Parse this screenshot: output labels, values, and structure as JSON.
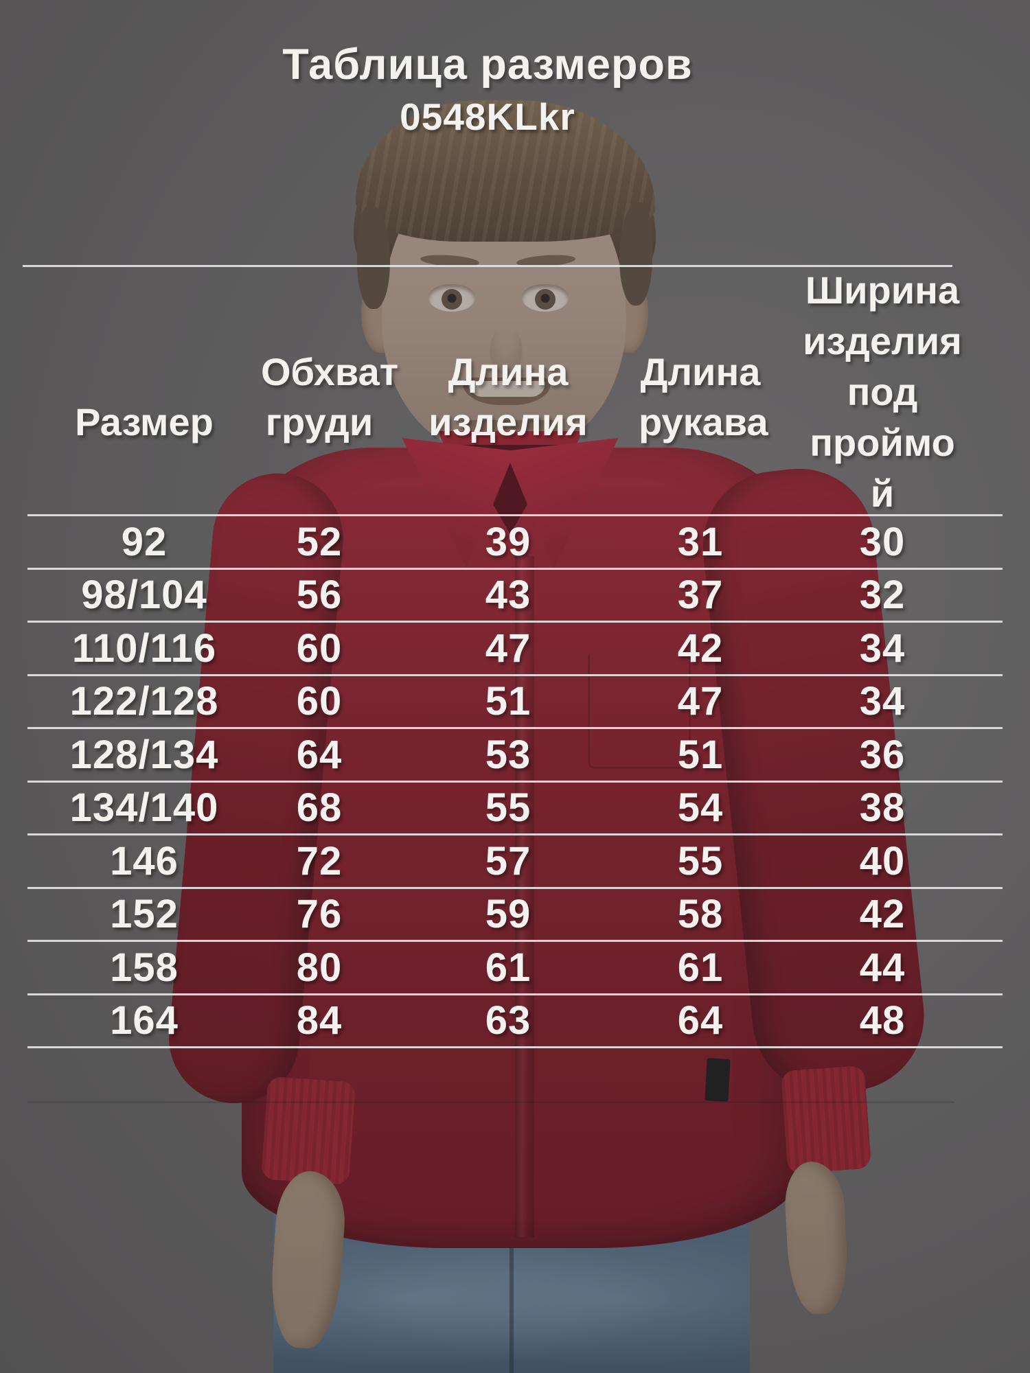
{
  "page": {
    "title": "Таблица размеров",
    "model_code": "0548KLkr"
  },
  "size_table": {
    "columns": [
      "Размер",
      "Обхват\nгруди",
      "Длина\nизделия",
      "Длина\nрукава",
      "Ширина\nизделия\nпод\nпроймо\nй"
    ],
    "rows": [
      [
        "92",
        "52",
        "39",
        "31",
        "30"
      ],
      [
        "98/104",
        "56",
        "43",
        "37",
        "32"
      ],
      [
        "110/116",
        "60",
        "47",
        "42",
        "34"
      ],
      [
        "122/128",
        "60",
        "51",
        "47",
        "34"
      ],
      [
        "128/134",
        "64",
        "53",
        "51",
        "36"
      ],
      [
        "134/140",
        "68",
        "55",
        "54",
        "38"
      ],
      [
        "146",
        "72",
        "57",
        "55",
        "40"
      ],
      [
        "152",
        "76",
        "59",
        "58",
        "42"
      ],
      [
        "158",
        "80",
        "61",
        "61",
        "44"
      ],
      [
        "164",
        "84",
        "63",
        "64",
        "48"
      ]
    ]
  },
  "photo": {
    "subject": "boy-in-red-shirt-and-jeans",
    "background_color": "#5a5858",
    "shirt_color": "#7c1a28",
    "jeans_color": "#45596d"
  },
  "colors": {
    "text": "#f4f2ef",
    "divider": "#e4e4e4"
  }
}
